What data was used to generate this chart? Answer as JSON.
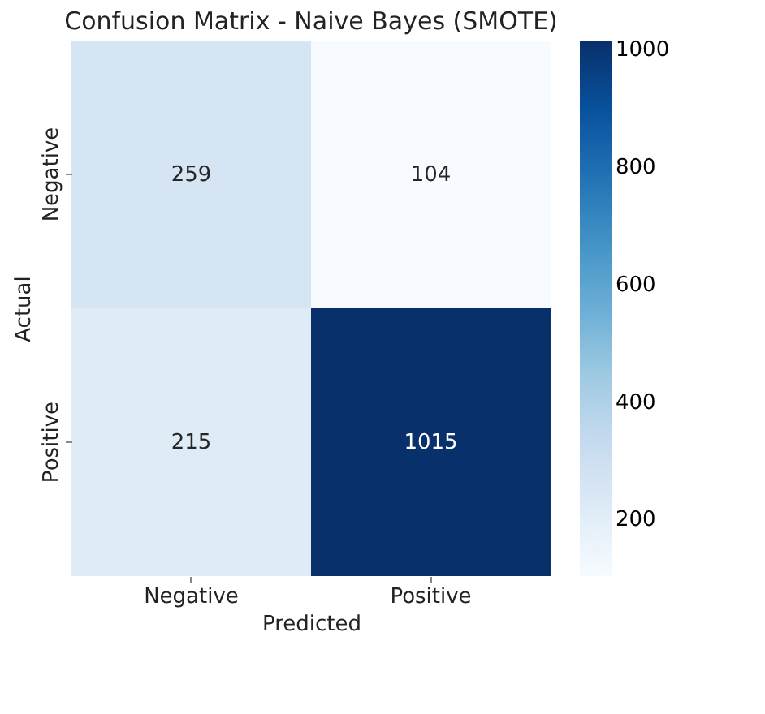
{
  "chart_data": {
    "type": "heatmap",
    "title": "Confusion Matrix - Naive Bayes (SMOTE)",
    "xlabel": "Predicted",
    "ylabel": "Actual",
    "categories": [
      "Negative",
      "Positive"
    ],
    "y_categories": [
      "Negative",
      "Positive"
    ],
    "cells": [
      [
        259,
        104
      ],
      [
        215,
        1015
      ]
    ],
    "clim": [
      104,
      1015
    ],
    "cticks": [
      200,
      400,
      600,
      800,
      1000
    ],
    "data_labels": true
  }
}
